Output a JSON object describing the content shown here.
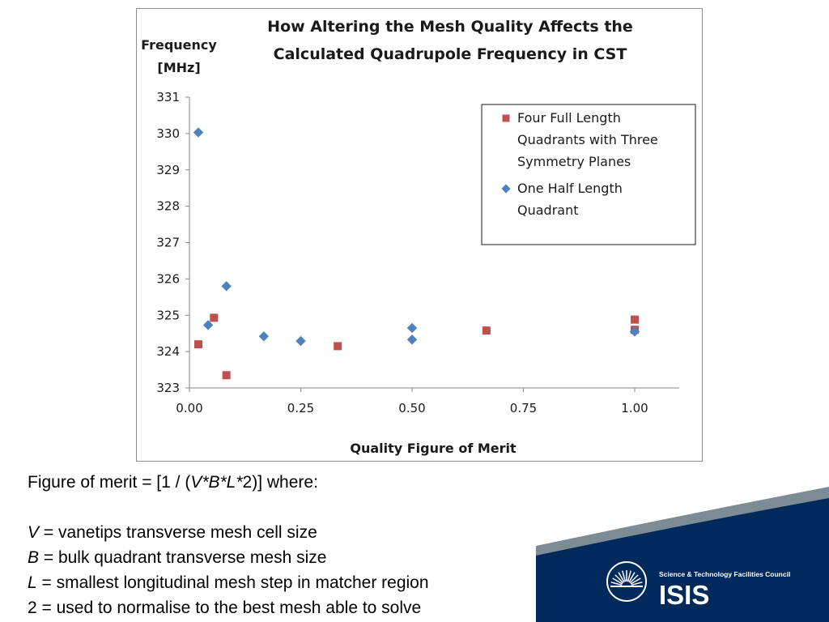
{
  "chart_data": {
    "type": "scatter",
    "title": [
      "How Altering the Mesh Quality Affects the",
      "Calculated Quadrupole Frequency in CST"
    ],
    "xlabel": "Quality Figure of Merit",
    "ylabel": [
      "Frequency",
      "[MHz]"
    ],
    "xlim": [
      0,
      1.1
    ],
    "ylim": [
      323,
      331
    ],
    "x_ticks": [
      "0.00",
      "0.25",
      "0.50",
      "0.75",
      "1.00"
    ],
    "x_tick_values": [
      0,
      0.25,
      0.5,
      0.75,
      1.0
    ],
    "y_ticks": [
      "323",
      "324",
      "325",
      "326",
      "327",
      "328",
      "329",
      "330",
      "331"
    ],
    "y_tick_values": [
      323,
      324,
      325,
      326,
      327,
      328,
      329,
      330,
      331
    ],
    "grid": false,
    "legend_position": "top-right",
    "series": [
      {
        "name": "Four Full Length Quadrants with Three Symmetry Planes",
        "legend_lines": [
          "Four Full Length",
          "Quadrants with Three",
          "Symmetry Planes"
        ],
        "marker": "square",
        "color": "#c0504d",
        "points": [
          [
            0.02,
            324.2
          ],
          [
            0.055,
            324.93
          ],
          [
            0.083,
            323.35
          ],
          [
            0.333,
            324.15
          ],
          [
            0.667,
            324.58
          ],
          [
            1.0,
            324.88
          ],
          [
            1.0,
            324.6
          ]
        ]
      },
      {
        "name": "One Half Length Quadrant",
        "legend_lines": [
          "One Half Length",
          "Quadrant"
        ],
        "marker": "diamond",
        "color": "#4f81bd",
        "points": [
          [
            0.02,
            330.03
          ],
          [
            0.042,
            324.73
          ],
          [
            0.083,
            325.8
          ],
          [
            0.167,
            324.42
          ],
          [
            0.25,
            324.29
          ],
          [
            0.5,
            324.65
          ],
          [
            0.5,
            324.33
          ],
          [
            1.0,
            324.55
          ]
        ]
      }
    ]
  },
  "notes": {
    "figure_of_merit": {
      "prefix": "Figure of merit = [1 / (",
      "formula": "V*B*L*",
      "suffix": "2)]  where:"
    },
    "definitions": [
      {
        "symbol": "V",
        "text": " = vanetips transverse mesh cell size"
      },
      {
        "symbol": "B",
        "text": " = bulk quadrant transverse mesh size"
      },
      {
        "symbol": "L",
        "text": " = smallest longitudinal mesh step in matcher region"
      },
      {
        "symbol": "",
        "text": "2 = used to normalise to the best mesh able to solve"
      }
    ]
  },
  "logo": {
    "council": "Science & Technology Facilities Council",
    "name": "ISIS",
    "band_color": "#002a5c",
    "accent_color": "#7d8b95"
  }
}
